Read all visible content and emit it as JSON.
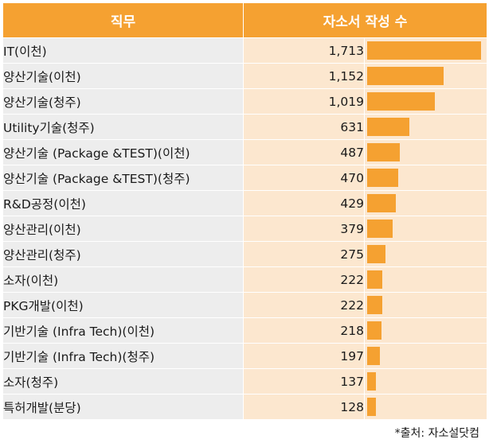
{
  "chart_data": {
    "type": "table",
    "columns": [
      "직무",
      "자소서 작성 수"
    ],
    "rows": [
      {
        "label": "IT(이천)",
        "value": 1713,
        "display": "1,713"
      },
      {
        "label": "양산기술(이천)",
        "value": 1152,
        "display": "1,152"
      },
      {
        "label": "양산기술(청주)",
        "value": 1019,
        "display": "1,019"
      },
      {
        "label": "Utility기술(청주)",
        "value": 631,
        "display": "631"
      },
      {
        "label": "양산기술 (Package &TEST)(이천)",
        "value": 487,
        "display": "487"
      },
      {
        "label": "양산기술 (Package &TEST)(청주)",
        "value": 470,
        "display": "470"
      },
      {
        "label": "R&D공정(이천)",
        "value": 429,
        "display": "429"
      },
      {
        "label": "양산관리(이천)",
        "value": 379,
        "display": "379"
      },
      {
        "label": "양산관리(청주)",
        "value": 275,
        "display": "275"
      },
      {
        "label": "소자(이천)",
        "value": 222,
        "display": "222"
      },
      {
        "label": "PKG개발(이천)",
        "value": 222,
        "display": "222"
      },
      {
        "label": "기반기술 (Infra Tech)(이천)",
        "value": 218,
        "display": "218"
      },
      {
        "label": "기반기술 (Infra Tech)(청주)",
        "value": 197,
        "display": "197"
      },
      {
        "label": "소자(청주)",
        "value": 137,
        "display": "137"
      },
      {
        "label": "특허개발(분당)",
        "value": 128,
        "display": "128"
      }
    ],
    "bar_max": 1713,
    "colors": {
      "header": "#f5a131",
      "bar": "#f5a131",
      "label_bg": "#ededed",
      "value_bg": "#fce7cf"
    }
  },
  "source_note": "*출처: 자소설닷컴"
}
